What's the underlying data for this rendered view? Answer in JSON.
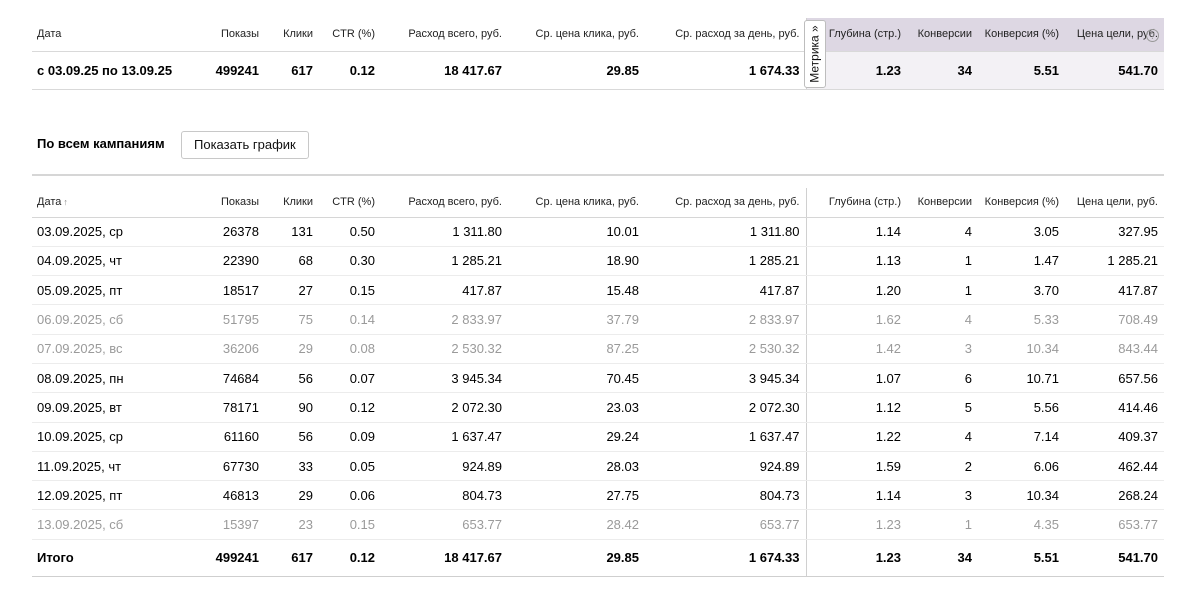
{
  "columns": [
    "Дата",
    "Показы",
    "Клики",
    "CTR (%)",
    "Расход всего, руб.",
    "Ср. цена клика, руб.",
    "Ср. расход за день, руб.",
    "Глубина (стр.)",
    "Конверсии",
    "Конверсия (%)",
    "Цена цели, руб."
  ],
  "summary": {
    "period": "с 03.09.25 по 13.09.25",
    "values": [
      "499241",
      "617",
      "0.12",
      "18 417.67",
      "29.85",
      "1 674.33",
      "1.23",
      "34",
      "5.51",
      "541.70"
    ]
  },
  "metrika_label": "Метрика »",
  "section": {
    "title": "По всем кампаниям",
    "chart_button": "Показать график"
  },
  "detail": {
    "sort_indicator": "↑",
    "rows": [
      {
        "date": "03.09.2025, ср",
        "values": [
          "26378",
          "131",
          "0.50",
          "1 311.80",
          "10.01",
          "1 311.80",
          "1.14",
          "4",
          "3.05",
          "327.95"
        ],
        "weekend": false
      },
      {
        "date": "04.09.2025, чт",
        "values": [
          "22390",
          "68",
          "0.30",
          "1 285.21",
          "18.90",
          "1 285.21",
          "1.13",
          "1",
          "1.47",
          "1 285.21"
        ],
        "weekend": false
      },
      {
        "date": "05.09.2025, пт",
        "values": [
          "18517",
          "27",
          "0.15",
          "417.87",
          "15.48",
          "417.87",
          "1.20",
          "1",
          "3.70",
          "417.87"
        ],
        "weekend": false
      },
      {
        "date": "06.09.2025, сб",
        "values": [
          "51795",
          "75",
          "0.14",
          "2 833.97",
          "37.79",
          "2 833.97",
          "1.62",
          "4",
          "5.33",
          "708.49"
        ],
        "weekend": true
      },
      {
        "date": "07.09.2025, вс",
        "values": [
          "36206",
          "29",
          "0.08",
          "2 530.32",
          "87.25",
          "2 530.32",
          "1.42",
          "3",
          "10.34",
          "843.44"
        ],
        "weekend": true
      },
      {
        "date": "08.09.2025, пн",
        "values": [
          "74684",
          "56",
          "0.07",
          "3 945.34",
          "70.45",
          "3 945.34",
          "1.07",
          "6",
          "10.71",
          "657.56"
        ],
        "weekend": false
      },
      {
        "date": "09.09.2025, вт",
        "values": [
          "78171",
          "90",
          "0.12",
          "2 072.30",
          "23.03",
          "2 072.30",
          "1.12",
          "5",
          "5.56",
          "414.46"
        ],
        "weekend": false
      },
      {
        "date": "10.09.2025, ср",
        "values": [
          "61160",
          "56",
          "0.09",
          "1 637.47",
          "29.24",
          "1 637.47",
          "1.22",
          "4",
          "7.14",
          "409.37"
        ],
        "weekend": false
      },
      {
        "date": "11.09.2025, чт",
        "values": [
          "67730",
          "33",
          "0.05",
          "924.89",
          "28.03",
          "924.89",
          "1.59",
          "2",
          "6.06",
          "462.44"
        ],
        "weekend": false
      },
      {
        "date": "12.09.2025, пт",
        "values": [
          "46813",
          "29",
          "0.06",
          "804.73",
          "27.75",
          "804.73",
          "1.14",
          "3",
          "10.34",
          "268.24"
        ],
        "weekend": false
      },
      {
        "date": "13.09.2025, сб",
        "values": [
          "15397",
          "23",
          "0.15",
          "653.77",
          "28.42",
          "653.77",
          "1.23",
          "1",
          "4.35",
          "653.77"
        ],
        "weekend": true
      }
    ],
    "total": {
      "label": "Итого",
      "values": [
        "499241",
        "617",
        "0.12",
        "18 417.67",
        "29.85",
        "1 674.33",
        "1.23",
        "34",
        "5.51",
        "541.70"
      ]
    }
  }
}
